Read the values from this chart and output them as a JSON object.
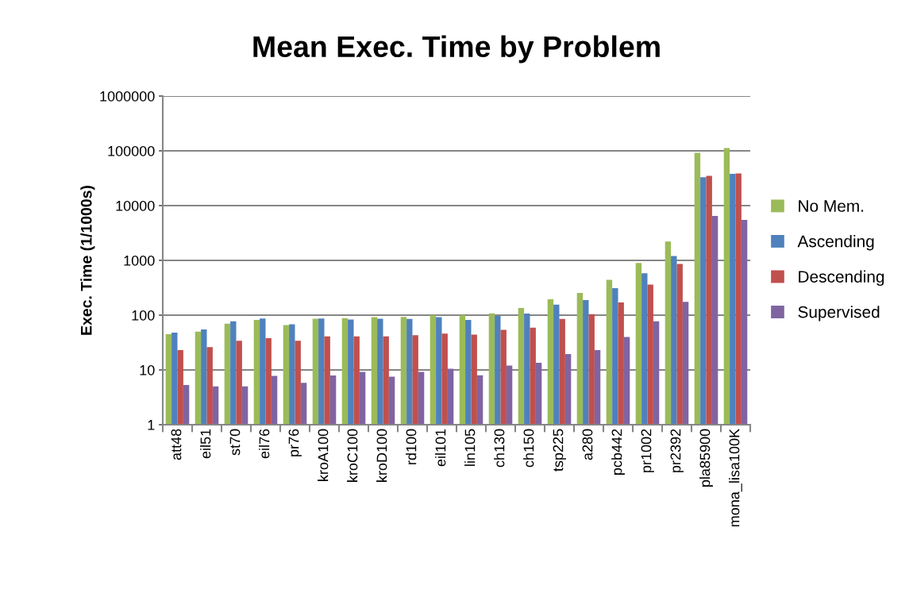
{
  "chart_data": {
    "type": "bar",
    "title": "Mean Exec. Time by Problem",
    "ylabel": "Exec. Time (1/1000s)",
    "categories": [
      "att48",
      "eil51",
      "st70",
      "eil76",
      "pr76",
      "kroA100",
      "kroC100",
      "kroD100",
      "rd100",
      "eil101",
      "lin105",
      "ch130",
      "ch150",
      "tsp225",
      "a280",
      "pcb442",
      "pr1002",
      "pr2392",
      "pla85900",
      "mona_lisa100K"
    ],
    "series": [
      {
        "name": "No Mem.",
        "color": "#9bbb59",
        "values": [
          45,
          50,
          70,
          82,
          66,
          86,
          88,
          92,
          93,
          100,
          100,
          108,
          135,
          195,
          255,
          440,
          900,
          2200,
          92000,
          112000
        ]
      },
      {
        "name": "Ascending",
        "color": "#4f81bd",
        "values": [
          48,
          55,
          77,
          87,
          68,
          87,
          83,
          86,
          85,
          92,
          82,
          97,
          107,
          155,
          188,
          310,
          580,
          1200,
          33000,
          38000
        ]
      },
      {
        "name": "Descending",
        "color": "#c0504d",
        "values": [
          23,
          26,
          34,
          38,
          34,
          41,
          41,
          41,
          43,
          46,
          44,
          54,
          59,
          85,
          104,
          170,
          360,
          860,
          35000,
          38500
        ]
      },
      {
        "name": "Supervised",
        "color": "#8064a2",
        "values": [
          5.3,
          5,
          5,
          7.8,
          5.8,
          7.9,
          9.2,
          7.5,
          9.2,
          10.5,
          8,
          12,
          13.5,
          19.5,
          23,
          40,
          77,
          175,
          6500,
          5500
        ]
      }
    ],
    "log": true,
    "ylim": [
      1,
      1000000
    ],
    "yticks": [
      1,
      10,
      100,
      1000,
      10000,
      100000,
      1000000
    ],
    "grid": "y",
    "legend": "right"
  }
}
